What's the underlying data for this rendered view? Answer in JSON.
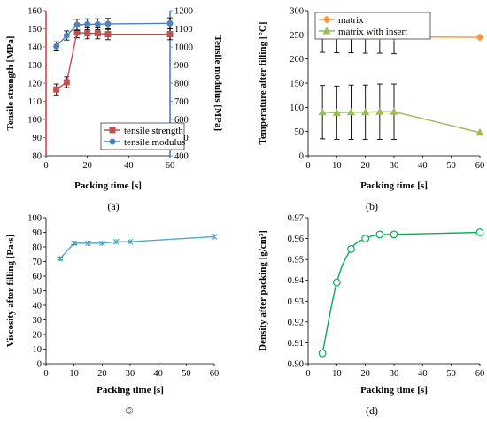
{
  "chart_data": [
    {
      "panel": "(a)",
      "panel_label": "(a)",
      "type": "line",
      "xlabel": "Packing time [s]",
      "ylabel": "Tensile strength [MPa]",
      "y2label": "Tensile modulus [MPa]",
      "xlim": [
        0,
        60
      ],
      "xticks": [
        0,
        20,
        40,
        60
      ],
      "ylim": [
        80,
        160
      ],
      "yticks": [
        80,
        90,
        100,
        110,
        120,
        130,
        140,
        150,
        160
      ],
      "y2lim": [
        400,
        1200
      ],
      "y2ticks": [
        400,
        500,
        600,
        700,
        800,
        900,
        1000,
        1100,
        1200
      ],
      "grid": false,
      "legend_position": "center-right",
      "series": [
        {
          "name": "tensile strength",
          "axis": "left",
          "color": "#C0504D",
          "marker": "square",
          "x": [
            5,
            10,
            15,
            20,
            25,
            30,
            60
          ],
          "y": [
            116.5,
            120.5,
            148,
            147.5,
            147.5,
            147,
            147
          ],
          "err": [
            3,
            3,
            3,
            3,
            3,
            3,
            3
          ]
        },
        {
          "name": "tensile modulus",
          "axis": "right",
          "color": "#4F81BD",
          "marker": "circle",
          "x": [
            5,
            10,
            15,
            20,
            25,
            30,
            60
          ],
          "y": [
            1003,
            1063,
            1122,
            1125,
            1125,
            1127,
            1130
          ],
          "err": [
            25,
            25,
            30,
            30,
            30,
            30,
            30
          ]
        }
      ]
    },
    {
      "panel": "(b)",
      "panel_label": "(b)",
      "type": "line",
      "xlabel": "Packing time [s]",
      "ylabel": "Temperature after filling [°C]",
      "xlim": [
        0,
        60
      ],
      "xticks": [
        0,
        10,
        20,
        30,
        40,
        50,
        60
      ],
      "ylim": [
        0,
        300
      ],
      "yticks": [
        0,
        50,
        100,
        150,
        200,
        250,
        300
      ],
      "grid": false,
      "legend_position": "top-left",
      "series": [
        {
          "name": "matrix",
          "color": "#F79646",
          "marker": "diamond",
          "x": [
            5,
            10,
            15,
            20,
            25,
            30,
            60
          ],
          "y": [
            249,
            248,
            248,
            247,
            247,
            246,
            245
          ],
          "err": [
            35,
            35,
            35,
            35,
            35,
            35,
            0
          ]
        },
        {
          "name": "matrix with insert",
          "color": "#9BBB59",
          "marker": "triangle",
          "x": [
            5,
            10,
            15,
            20,
            25,
            30,
            60
          ],
          "y": [
            90,
            89,
            90,
            90,
            91,
            91,
            48
          ],
          "err": [
            55,
            55,
            56,
            56,
            57,
            57,
            0
          ]
        }
      ]
    },
    {
      "panel": "(c)",
      "panel_label": "©",
      "type": "line",
      "xlabel": "Packing time [s]",
      "ylabel": "Viscosity after filling [Pa·s]",
      "xlim": [
        0,
        60
      ],
      "xticks": [
        0,
        10,
        20,
        30,
        40,
        50,
        60
      ],
      "ylim": [
        0,
        100
      ],
      "yticks": [
        0,
        10,
        20,
        30,
        40,
        50,
        60,
        70,
        80,
        90,
        100
      ],
      "grid": false,
      "series": [
        {
          "color": "#4BACC6",
          "marker": "star",
          "x": [
            5,
            10,
            15,
            20,
            25,
            30,
            60
          ],
          "y": [
            72,
            82.5,
            82.5,
            82.5,
            83.5,
            83.5,
            87
          ],
          "err": [
            1,
            1,
            0,
            0,
            0,
            0,
            0
          ]
        }
      ]
    },
    {
      "panel": "(d)",
      "panel_label": "(d)",
      "type": "line",
      "xlabel": "Packing time [s]",
      "ylabel": "Density after packing [g/cm³]",
      "xlim": [
        0,
        60
      ],
      "xticks": [
        0,
        10,
        20,
        30,
        40,
        50,
        60
      ],
      "ylim": [
        0.9,
        0.97
      ],
      "yticks": [
        "0.90",
        "0.91",
        "0.92",
        "0.93",
        "0.94",
        "0.95",
        "0.96",
        "0.97"
      ],
      "grid": false,
      "series": [
        {
          "color": "#00B050",
          "marker": "open-circle",
          "smooth": true,
          "x": [
            5,
            10,
            15,
            20,
            25,
            30,
            60
          ],
          "y": [
            0.905,
            0.939,
            0.955,
            0.96,
            0.962,
            0.962,
            0.963
          ]
        }
      ]
    }
  ]
}
